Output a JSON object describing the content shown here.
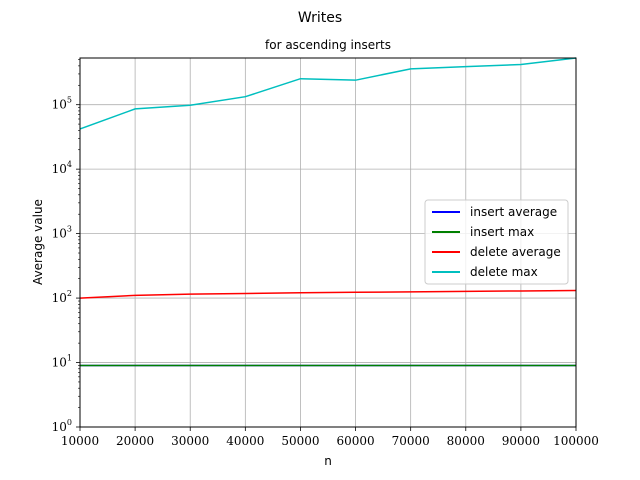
{
  "chart_data": {
    "type": "line",
    "title": "Writes",
    "subtitle": "for ascending inserts",
    "xlabel": "n",
    "ylabel": "Average value",
    "x": [
      10000,
      20000,
      30000,
      40000,
      50000,
      60000,
      70000,
      80000,
      90000,
      100000
    ],
    "x_ticks": [
      "10000",
      "20000",
      "30000",
      "40000",
      "50000",
      "60000",
      "70000",
      "80000",
      "90000",
      "100000"
    ],
    "y_scale": "log",
    "ylim": [
      1,
      530000
    ],
    "xlim": [
      10000,
      100000
    ],
    "y_ticks": [
      {
        "value": 1,
        "base": "10",
        "exp": "0"
      },
      {
        "value": 10,
        "base": "10",
        "exp": "1"
      },
      {
        "value": 100,
        "base": "10",
        "exp": "2"
      },
      {
        "value": 1000,
        "base": "10",
        "exp": "3"
      },
      {
        "value": 10000,
        "base": "10",
        "exp": "4"
      },
      {
        "value": 100000,
        "base": "10",
        "exp": "5"
      }
    ],
    "grid": true,
    "legend_position": "center-right",
    "series": [
      {
        "name": "insert average",
        "color": "#0000ff",
        "values": [
          9,
          9,
          9,
          9,
          9,
          9,
          9,
          9,
          9,
          9
        ]
      },
      {
        "name": "insert max",
        "color": "#008000",
        "values": [
          9,
          9,
          9,
          9,
          9,
          9,
          9,
          9,
          9,
          9
        ]
      },
      {
        "name": "delete average",
        "color": "#ff0000",
        "values": [
          100,
          110,
          115,
          118,
          121,
          123,
          125,
          127,
          129,
          131
        ]
      },
      {
        "name": "delete max",
        "color": "#00bfbf",
        "values": [
          42000,
          86000,
          98000,
          133000,
          253000,
          240000,
          360000,
          390000,
          420000,
          530000
        ]
      }
    ]
  }
}
